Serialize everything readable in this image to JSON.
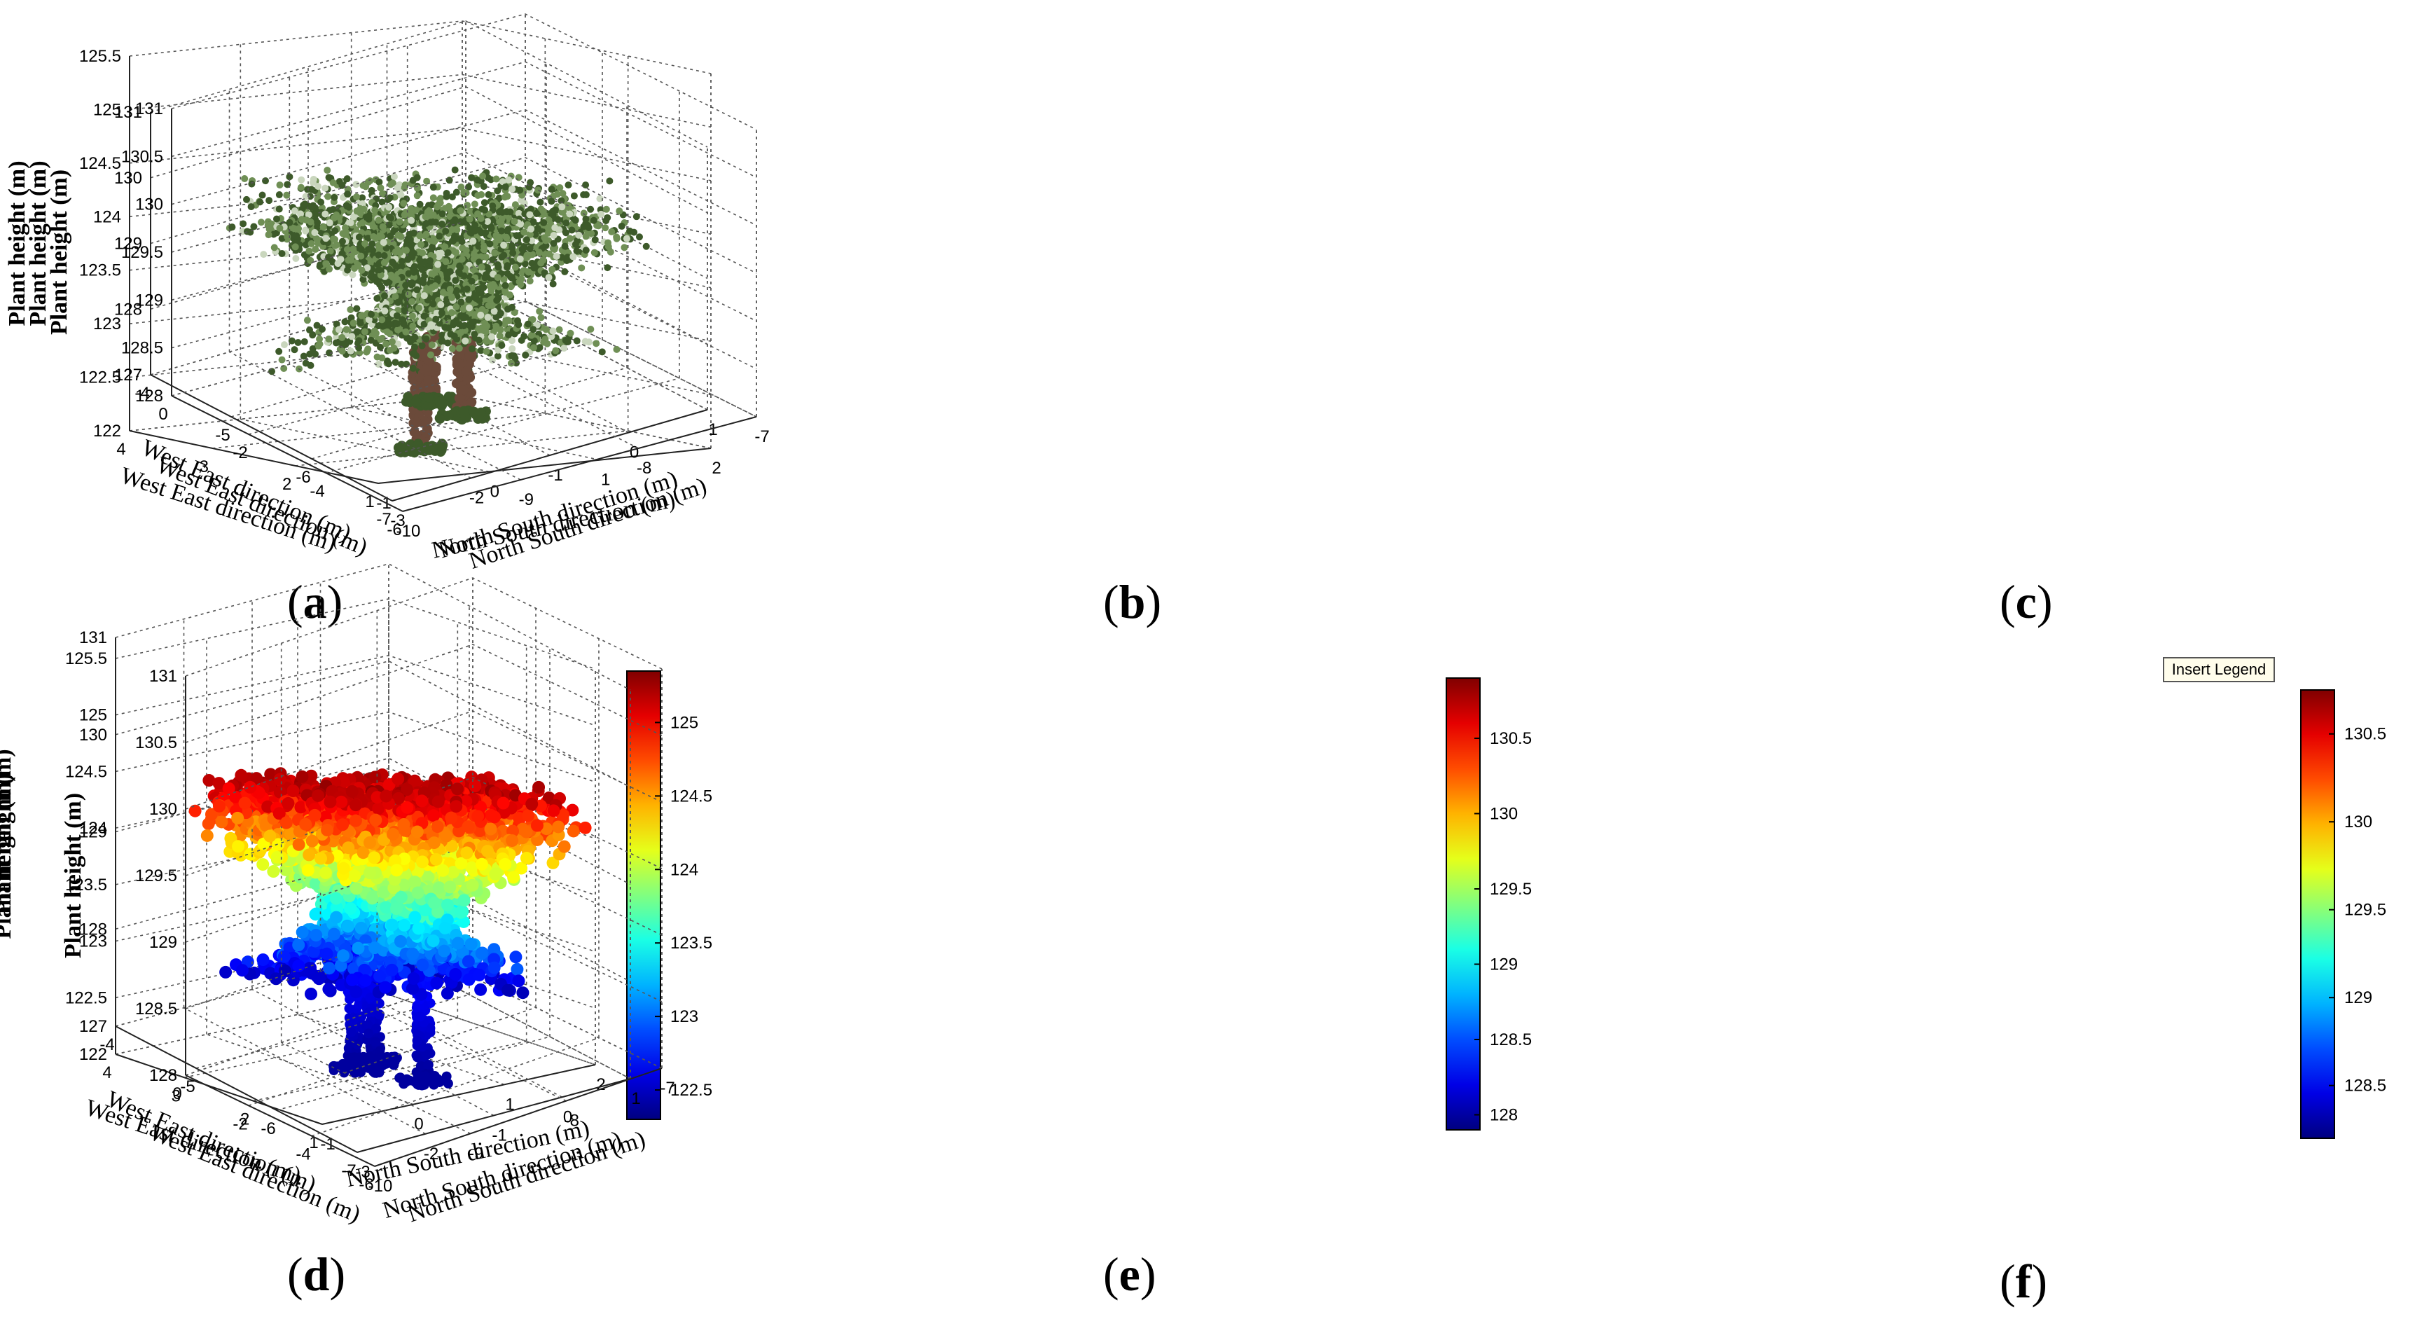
{
  "chart_data": [
    {
      "panel": "a",
      "type": "scatter",
      "rendering": "photographic point cloud",
      "xlabel": "West East direction (m)",
      "ylabel": "North South direction (m)",
      "zlabel": "Plant height (m)",
      "x_ticks": [
        "4",
        "3",
        "2",
        "1"
      ],
      "y_ticks": [
        "-1",
        "0",
        "1",
        "2"
      ],
      "z_ticks": [
        "122",
        "122.5",
        "123",
        "123.5",
        "124",
        "124.5",
        "125",
        "125.5"
      ],
      "xlim": [
        1,
        4
      ],
      "ylim": [
        -1,
        2
      ],
      "zlim": [
        122,
        125.5
      ]
    },
    {
      "panel": "b",
      "type": "scatter",
      "rendering": "photographic point cloud",
      "xlabel": "West East direction (m)",
      "ylabel": "North South direction (m)",
      "zlabel": "Plant height (m)",
      "x_ticks": [
        "-4",
        "-5",
        "-6",
        "-7"
      ],
      "y_ticks": [
        "-3",
        "-2",
        "-1",
        "0",
        "1"
      ],
      "z_ticks": [
        "127",
        "128",
        "129",
        "130",
        "131"
      ],
      "xlim": [
        -7,
        -4
      ],
      "ylim": [
        -3,
        1
      ],
      "zlim": [
        127,
        131
      ]
    },
    {
      "panel": "c",
      "type": "scatter",
      "rendering": "photographic point cloud",
      "xlabel": "West East direction (m)",
      "ylabel": "North South direction (m)",
      "zlabel": "Plant height (m)",
      "x_ticks": [
        "0",
        "-2",
        "-4",
        "-6"
      ],
      "y_ticks": [
        "-10",
        "-9",
        "-8",
        "-7"
      ],
      "z_ticks": [
        "128",
        "128.5",
        "129",
        "129.5",
        "130",
        "130.5",
        "131"
      ],
      "xlim": [
        -6,
        0
      ],
      "ylim": [
        -10,
        -7
      ],
      "zlim": [
        128,
        131
      ]
    },
    {
      "panel": "d",
      "type": "scatter",
      "rendering": "height-colored point cloud",
      "xlabel": "West East direction (m)",
      "ylabel": "North South direction (m)",
      "zlabel": "Plant height (m)",
      "x_ticks": [
        "4",
        "3",
        "2",
        "1"
      ],
      "y_ticks": [
        "-1",
        "0",
        "1",
        "2"
      ],
      "z_ticks": [
        "122",
        "122.5",
        "123",
        "123.5",
        "124",
        "124.5",
        "125",
        "125.5"
      ],
      "xlim": [
        1,
        4
      ],
      "ylim": [
        -1,
        2
      ],
      "zlim": [
        122,
        125.5
      ],
      "colorbar": {
        "range": [
          122.3,
          125.35
        ],
        "ticks": [
          "122.5",
          "123",
          "123.5",
          "124",
          "124.5",
          "125"
        ]
      }
    },
    {
      "panel": "e",
      "type": "scatter",
      "rendering": "height-colored point cloud",
      "xlabel": "West East direction (m)",
      "ylabel": "North South direction (m)",
      "zlabel": "Plant height (m)",
      "x_ticks": [
        "-4",
        "-5",
        "-6",
        "-7"
      ],
      "y_ticks": [
        "-3",
        "-2",
        "-1",
        "0",
        "1"
      ],
      "z_ticks": [
        "127",
        "128",
        "129",
        "130",
        "131"
      ],
      "xlim": [
        -7,
        -4
      ],
      "ylim": [
        -3,
        1
      ],
      "zlim": [
        127,
        131
      ],
      "colorbar": {
        "range": [
          127.9,
          130.9
        ],
        "ticks": [
          "128",
          "128.5",
          "129",
          "129.5",
          "130",
          "130.5"
        ]
      }
    },
    {
      "panel": "f",
      "type": "scatter",
      "rendering": "height-colored point cloud",
      "xlabel": "West East direction (m)",
      "ylabel": "North South direction (m)",
      "zlabel": "Plant height (m)",
      "x_ticks": [
        "0",
        "-2",
        "-4",
        "-6"
      ],
      "y_ticks": [
        "-10",
        "-9",
        "-8",
        "-7"
      ],
      "z_ticks": [
        "128",
        "128.5",
        "129",
        "129.5",
        "130",
        "130.5",
        "131"
      ],
      "xlim": [
        -6,
        0
      ],
      "ylim": [
        -10,
        -7
      ],
      "zlim": [
        128,
        131
      ],
      "colorbar": {
        "range": [
          128.2,
          130.75
        ],
        "ticks": [
          "128.5",
          "129",
          "129.5",
          "130",
          "130.5"
        ]
      }
    }
  ],
  "captions": [
    "(a)",
    "(b)",
    "(c)",
    "(d)",
    "(e)",
    "(f)"
  ],
  "overlay": {
    "insert_legend_label": "Insert Legend"
  },
  "colors": {
    "foliage_dark": "#3d5a2a",
    "foliage_mid": "#6f8f55",
    "foliage_light": "#c9d6bd",
    "trunk": "#6b4a3a"
  }
}
